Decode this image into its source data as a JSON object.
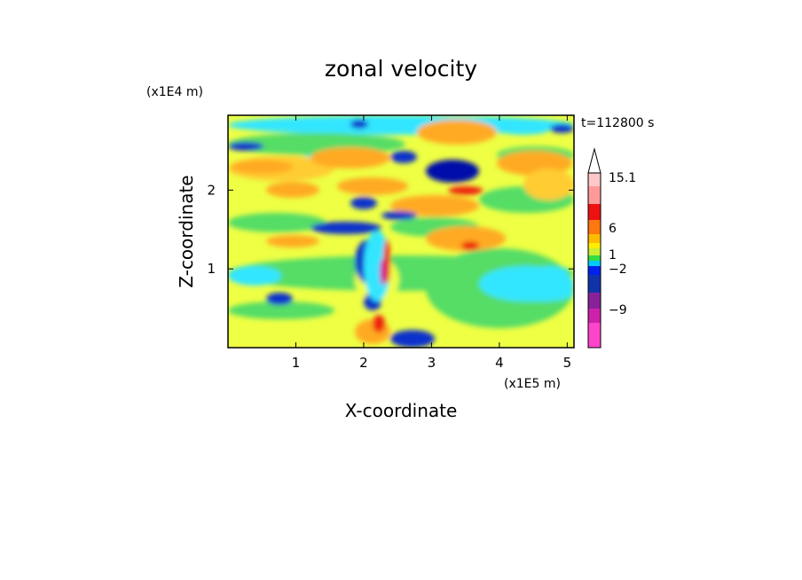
{
  "chart_data": {
    "type": "heatmap",
    "title": "zonal velocity",
    "time_label": "t=112800 s",
    "xlabel": "X-coordinate",
    "ylabel": "Z-coordinate",
    "x_multiplier": "(x1E5 m)",
    "y_multiplier": "(x1E4 m)",
    "xlim": [
      0,
      5.1
    ],
    "ylim": [
      0,
      2.95
    ],
    "x_ticks": [
      1,
      2,
      3,
      4,
      5
    ],
    "y_ticks": [
      1,
      2
    ],
    "grid": false,
    "colorbar": {
      "labels": [
        {
          "text": "15.1",
          "value": 15.1
        },
        {
          "text": "6",
          "value": 6
        },
        {
          "text": "1",
          "value": 1
        },
        {
          "text": "−2",
          "value": -2
        },
        {
          "text": "−9",
          "value": -9
        }
      ],
      "colors": [
        "#ff44cc",
        "#cc22aa",
        "#882299",
        "#1133aa",
        "#0022ee",
        "#00ccff",
        "#33dd44",
        "#ccee33",
        "#ffee00",
        "#ffbb00",
        "#ff7711",
        "#ee1111",
        "#ff9a9a",
        "#ffc8c8"
      ]
    },
    "field_colors": {
      "yellow": "#eeff44",
      "green": "#55dd66",
      "cyan": "#33e6ff",
      "orange": "#ffaa22",
      "light_orange": "#ffcc33",
      "blue": "#1133cc",
      "dark_blue": "#0011aa",
      "red": "#ee2211",
      "magenta": "#cc22aa"
    }
  }
}
